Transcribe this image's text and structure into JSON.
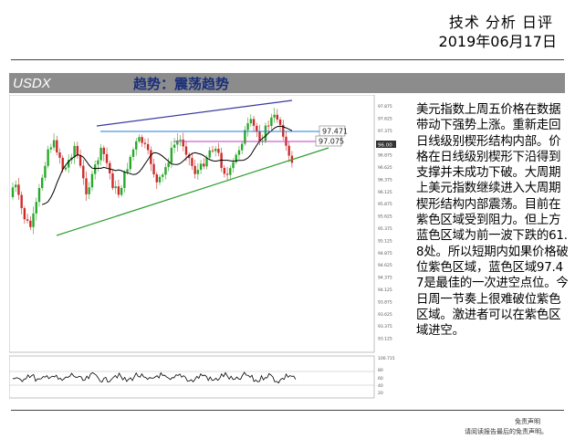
{
  "header": {
    "title": "技术 分析 日评",
    "date": "2019年06月17日"
  },
  "banner": {
    "symbol": "USDX",
    "trend": "趋势：震荡趋势"
  },
  "chart": {
    "label_upper": "97.471",
    "label_lower": "97.075",
    "last_price": "96.00",
    "price_ticks": [
      "97.875",
      "97.625",
      "97.375",
      "97.125",
      "96.875",
      "96.625",
      "96.375",
      "96.125",
      "95.875",
      "95.625",
      "95.375",
      "95.125",
      "94.875",
      "94.625",
      "94.375",
      "94.125",
      "93.875",
      "93.625",
      "93.375",
      "93.125"
    ],
    "osc_ticks": [
      "100.715",
      "80",
      "60",
      "40",
      "20"
    ],
    "colors": {
      "bull": "#2aa82a",
      "bear": "#cc2b2b",
      "resistance": "#3a3aa0",
      "support": "#2f9e2f",
      "blue_zone": "#1f7fd6",
      "purple_zone": "#c23cc2",
      "ma": "#000000"
    }
  },
  "commentary": "美元指数上周五价格在数据带动下强势上涨。重新走回日线级别楔形结构内部。价格在日线级别楔形下沿得到支撑并未成功下破。大周期上美元指数继续进入大周期楔形结构内部震荡。目前在紫色区域受到阻力。但上方蓝色区域为前一波下跌的61.8处。所以短期内如果价格破位紫色区域，蓝色区域97.47是最佳的一次进空点位。今日周一节奏上很难破位紫色区域。激进者可以在紫色区域进空。",
  "footer": {
    "line1": "免责声明",
    "line2": "请阅读报告最后的免责声明。"
  }
}
